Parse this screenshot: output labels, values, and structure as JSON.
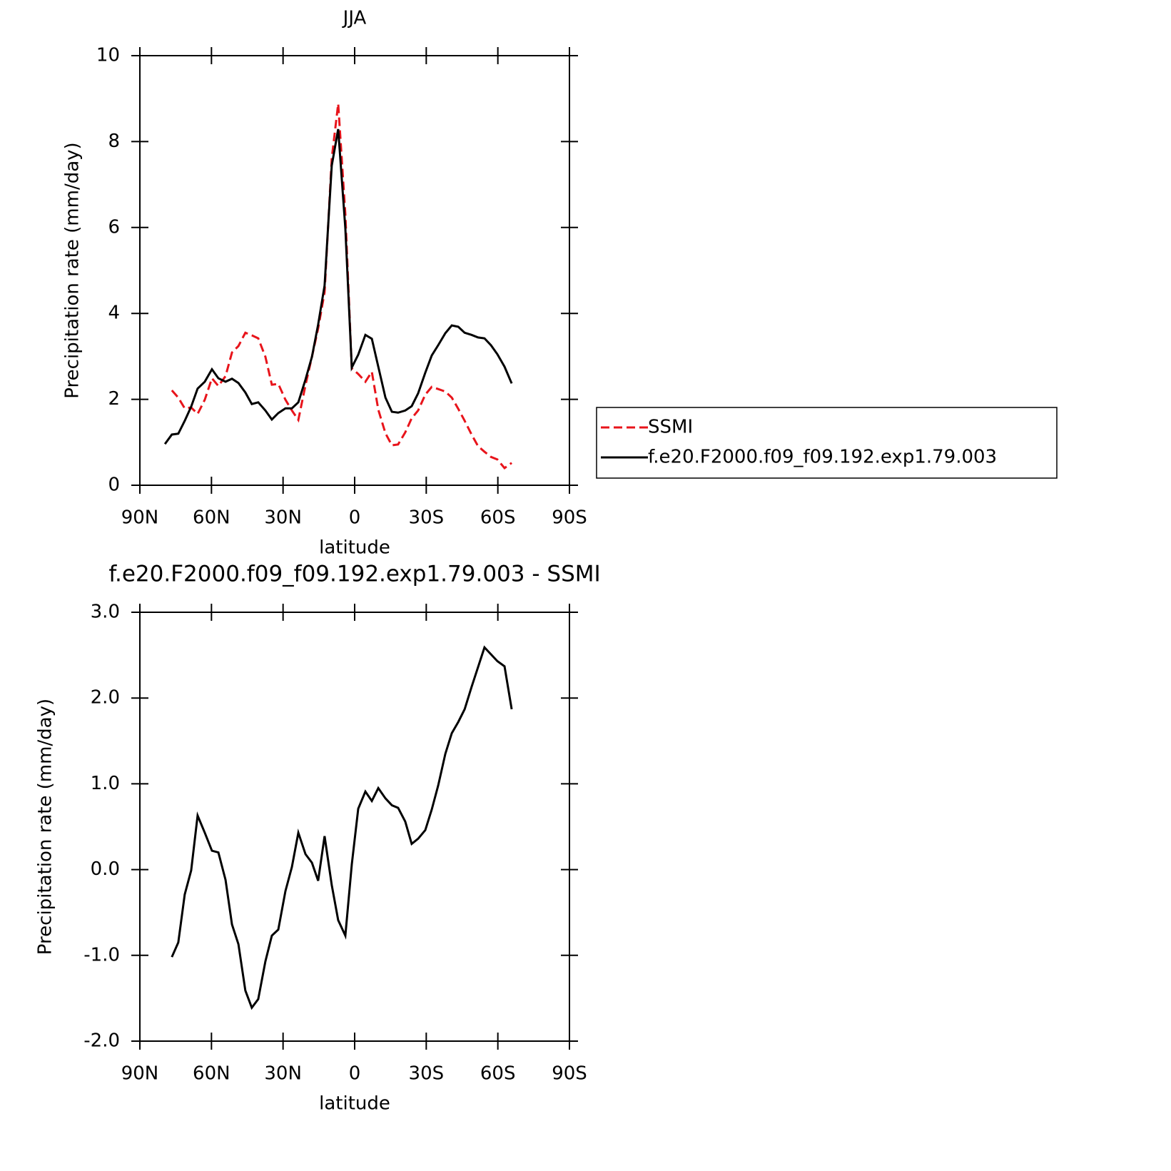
{
  "chart_data": [
    {
      "type": "line",
      "title": "JJA",
      "xlabel": "latitude",
      "ylabel": "Precipitation rate (mm/day)",
      "xlim": [
        90,
        -90
      ],
      "xticks": [
        {
          "value": 90,
          "label": "90N"
        },
        {
          "value": 60,
          "label": "60N"
        },
        {
          "value": 30,
          "label": "30N"
        },
        0,
        {
          "value": -30,
          "label": "30S"
        },
        {
          "value": -60,
          "label": "60S"
        },
        {
          "value": -90,
          "label": "90S"
        }
      ],
      "ylim": [
        0,
        10
      ],
      "yticks": [
        0,
        2,
        4,
        6,
        8,
        10
      ],
      "legend": "right",
      "x": [
        79.5,
        76.6,
        73.9,
        71.2,
        68.5,
        65.8,
        62.8,
        59.8,
        57.1,
        54.1,
        51.4,
        48.7,
        45.8,
        43.1,
        40.4,
        37.4,
        34.7,
        32.0,
        29.0,
        26.3,
        23.6,
        20.6,
        17.9,
        15.3,
        12.6,
        9.6,
        6.9,
        3.9,
        1.2,
        -1.5,
        -4.5,
        -7.2,
        -9.9,
        -12.9,
        -15.6,
        -18.2,
        -21.2,
        -23.9,
        -26.6,
        -29.6,
        -32.3,
        -35.0,
        -38.0,
        -40.7,
        -43.4,
        -46.1,
        -49.0,
        -51.7,
        -54.4,
        -57.1,
        -59.8,
        -62.8,
        -65.8
      ],
      "series": [
        {
          "name": "SSMI",
          "color": "#e8141b",
          "dash": true,
          "values": [
            null,
            2.21,
            2.04,
            1.79,
            1.81,
            1.66,
            1.99,
            2.49,
            2.31,
            2.54,
            3.09,
            3.24,
            3.55,
            3.49,
            3.42,
            2.99,
            2.34,
            2.36,
            1.99,
            1.74,
            1.52,
            2.33,
            2.99,
            3.65,
            4.49,
            7.61,
            8.88,
            6.31,
            2.72,
            2.59,
            2.41,
            2.64,
            1.76,
            1.21,
            0.93,
            0.95,
            1.23,
            1.56,
            1.74,
            2.11,
            2.29,
            2.24,
            2.18,
            2.04,
            1.78,
            1.5,
            1.18,
            0.91,
            0.78,
            0.66,
            0.6,
            0.4,
            0.52
          ]
        },
        {
          "name": "f.e20.F2000.f09_f09.192.exp1.79.003",
          "color": "#000000",
          "dash": false,
          "values": [
            0.96,
            1.18,
            1.2,
            1.5,
            1.83,
            2.25,
            2.41,
            2.7,
            2.49,
            2.41,
            2.48,
            2.38,
            2.16,
            1.89,
            1.93,
            1.74,
            1.53,
            1.68,
            1.79,
            1.79,
            1.93,
            2.46,
            2.99,
            3.74,
            4.65,
            7.44,
            8.29,
            5.98,
            2.74,
            3.04,
            3.5,
            3.41,
            2.76,
            2.04,
            1.71,
            1.69,
            1.74,
            1.84,
            2.14,
            2.62,
            3.02,
            3.26,
            3.54,
            3.72,
            3.69,
            3.55,
            3.5,
            3.44,
            3.42,
            3.26,
            3.05,
            2.76,
            2.37
          ]
        }
      ]
    },
    {
      "type": "line",
      "title": "f.e20.F2000.f09_f09.192.exp1.79.003 - SSMI",
      "xlabel": "latitude",
      "ylabel": "Precipitation rate (mm/day)",
      "xlim": [
        90,
        -90
      ],
      "xticks": [
        {
          "value": 90,
          "label": "90N"
        },
        {
          "value": 60,
          "label": "60N"
        },
        {
          "value": 30,
          "label": "30N"
        },
        0,
        {
          "value": -30,
          "label": "30S"
        },
        {
          "value": -60,
          "label": "60S"
        },
        {
          "value": -90,
          "label": "90S"
        }
      ],
      "ylim": [
        -2,
        3
      ],
      "yticks": [
        {
          "value": -2,
          "label": "-2.0"
        },
        {
          "value": -1,
          "label": "-1.0"
        },
        {
          "value": 0,
          "label": "0.0"
        },
        {
          "value": 1,
          "label": "1.0"
        },
        {
          "value": 2,
          "label": "2.0"
        },
        {
          "value": 3,
          "label": "3.0"
        }
      ],
      "x": [
        76.6,
        73.9,
        71.2,
        68.5,
        65.8,
        62.8,
        59.8,
        57.1,
        54.1,
        51.4,
        48.7,
        45.8,
        43.1,
        40.4,
        37.4,
        34.7,
        32.0,
        29.0,
        26.3,
        23.6,
        20.6,
        17.9,
        15.3,
        12.6,
        9.6,
        6.9,
        3.9,
        1.2,
        -1.5,
        -4.5,
        -7.2,
        -9.9,
        -12.9,
        -15.6,
        -18.2,
        -21.2,
        -23.9,
        -26.6,
        -29.6,
        -32.3,
        -35.0,
        -38.0,
        -40.7,
        -43.4,
        -46.1,
        -49.0,
        -51.7,
        -54.4,
        -57.1,
        -59.8,
        -62.8,
        -65.8
      ],
      "series": [
        {
          "color": "#000000",
          "dash": false,
          "values": [
            -1.02,
            -0.85,
            -0.29,
            -0.01,
            0.63,
            0.43,
            0.22,
            0.2,
            -0.12,
            -0.64,
            -0.87,
            -1.41,
            -1.61,
            -1.51,
            -1.07,
            -0.77,
            -0.7,
            -0.25,
            0.03,
            0.43,
            0.18,
            0.08,
            -0.13,
            0.39,
            -0.18,
            -0.59,
            -0.77,
            0.06,
            0.71,
            0.91,
            0.8,
            0.95,
            0.83,
            0.75,
            0.72,
            0.56,
            0.3,
            0.36,
            0.46,
            0.7,
            0.98,
            1.35,
            1.59,
            1.72,
            1.87,
            2.13,
            2.36,
            2.59,
            2.51,
            2.43,
            2.37,
            1.87
          ]
        }
      ]
    }
  ]
}
